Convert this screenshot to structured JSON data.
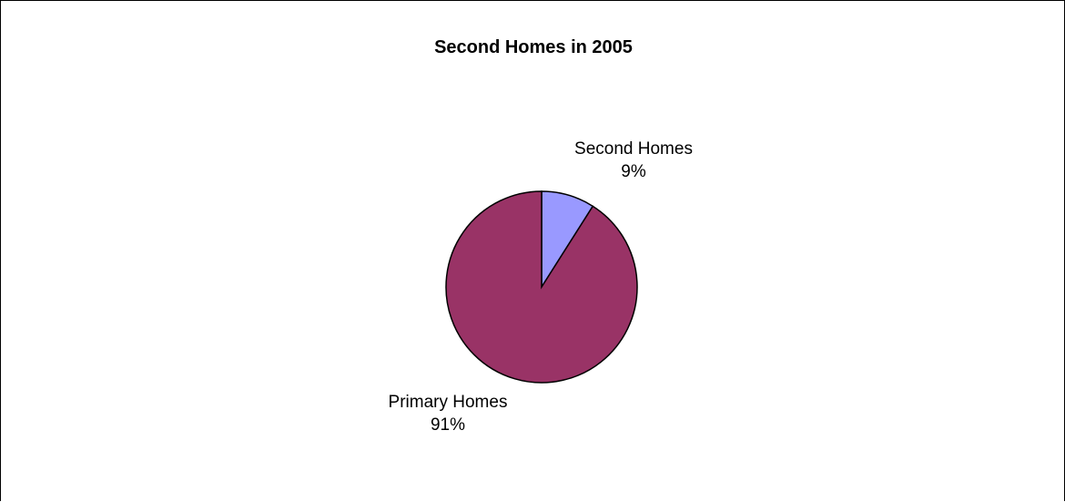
{
  "chart_data": {
    "type": "pie",
    "title": "Second Homes in 2005",
    "categories": [
      "Second Homes",
      "Primary Homes"
    ],
    "values": [
      9,
      91
    ],
    "value_labels": [
      "9%",
      "91%"
    ],
    "colors": [
      "#9999ff",
      "#993366"
    ],
    "start_angle": "12 o'clock",
    "direction": "clockwise",
    "legend": "none"
  }
}
